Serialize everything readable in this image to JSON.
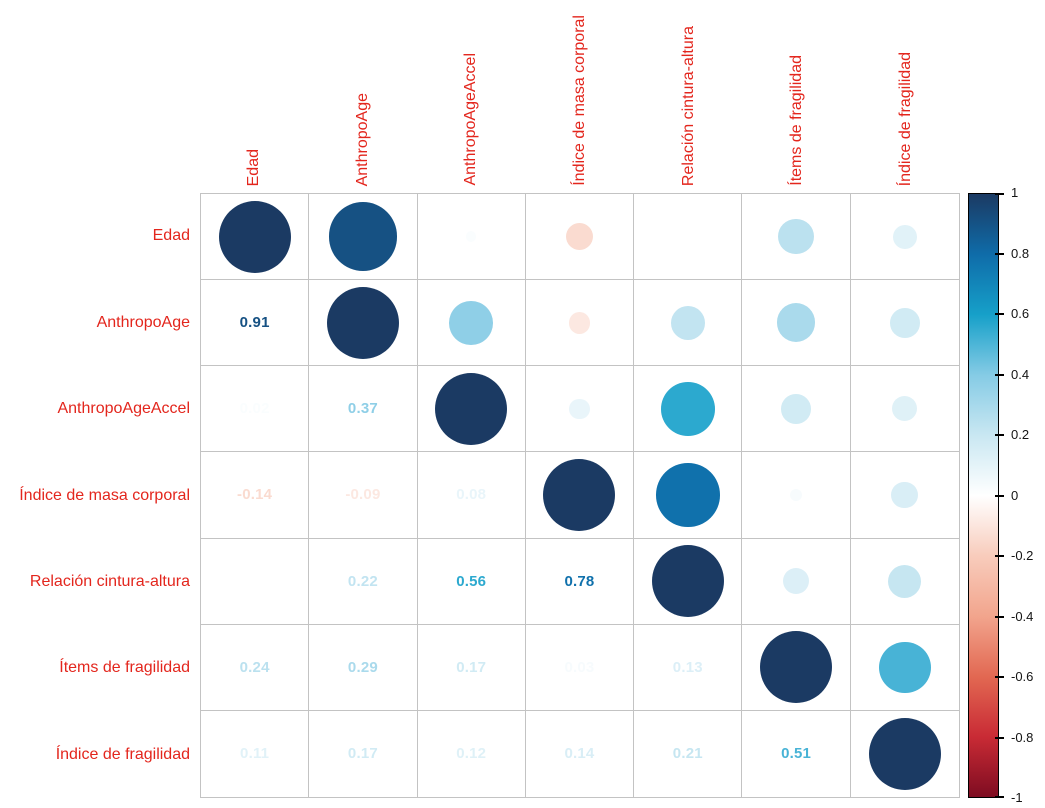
{
  "chart_data": {
    "type": "heatmap",
    "subtype": "correlation-matrix-corrplot",
    "title": "",
    "upper_triangle": "circles (size and color proportional to correlation)",
    "lower_triangle": "coefficient numbers",
    "variables": [
      "Edad",
      "AnthropoAge",
      "AnthropoAgeAccel",
      "Índice de masa corporal",
      "Relación cintura-altura",
      "Ítems de fragilidad",
      "Índice de fragilidad"
    ],
    "matrix": [
      [
        1.0,
        0.91,
        0.02,
        -0.14,
        null,
        0.24,
        0.11
      ],
      [
        0.91,
        1.0,
        0.37,
        -0.09,
        0.22,
        0.29,
        0.17
      ],
      [
        0.02,
        0.37,
        1.0,
        0.08,
        0.56,
        0.17,
        0.12
      ],
      [
        -0.14,
        -0.09,
        0.08,
        1.0,
        0.78,
        0.03,
        0.14
      ],
      [
        null,
        0.22,
        0.56,
        0.78,
        1.0,
        0.13,
        0.21
      ],
      [
        0.24,
        0.29,
        0.17,
        0.03,
        0.13,
        1.0,
        0.51
      ],
      [
        0.11,
        0.17,
        0.12,
        0.14,
        0.21,
        0.51,
        1.0
      ]
    ],
    "label_color": "#E3261D",
    "grid_color": "#C3C3C3",
    "background_color": "#FFFFFF",
    "colorbar": {
      "range": [
        -1,
        1
      ],
      "ticks": [
        "1",
        "0.8",
        "0.6",
        "0.4",
        "0.2",
        "0",
        "-0.2",
        "-0.4",
        "-0.6",
        "-0.8",
        "-1"
      ],
      "stops": [
        {
          "v": 1.0,
          "c": "#1B3A63"
        },
        {
          "v": 0.8,
          "c": "#0F6CA9"
        },
        {
          "v": 0.6,
          "c": "#16A0C9"
        },
        {
          "v": 0.4,
          "c": "#85CBE5"
        },
        {
          "v": 0.2,
          "c": "#C9E7F2"
        },
        {
          "v": 0.0,
          "c": "#FFFFFF"
        },
        {
          "v": -0.2,
          "c": "#F8CCBC"
        },
        {
          "v": -0.4,
          "c": "#F2A58D"
        },
        {
          "v": -0.6,
          "c": "#E26852"
        },
        {
          "v": -0.8,
          "c": "#C92B35"
        },
        {
          "v": -1.0,
          "c": "#7E0C21"
        }
      ]
    }
  }
}
